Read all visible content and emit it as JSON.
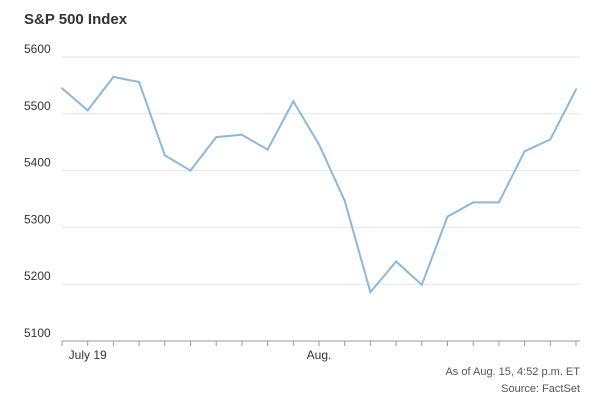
{
  "chart_data": {
    "type": "line",
    "title": "S&P 500 Index",
    "xlabel": "",
    "ylabel": "",
    "ylim": [
      5100,
      5600
    ],
    "yticks": [
      5100,
      5200,
      5300,
      5400,
      5500,
      5600
    ],
    "x_tick_labels": [
      {
        "index": 1,
        "label": "July 19"
      },
      {
        "index": 10,
        "label": "Aug."
      }
    ],
    "grid": true,
    "series": [
      {
        "values": [
          5545,
          5506,
          5565,
          5556,
          5427,
          5400,
          5459,
          5463,
          5437,
          5522,
          5446,
          5347,
          5186,
          5240,
          5199,
          5319,
          5344,
          5344,
          5434,
          5455,
          5543
        ]
      }
    ],
    "colors": {
      "line": "#8bb8de",
      "grid": "#e6e6e6",
      "axis": "#999999"
    }
  },
  "notes": {
    "as_of": "As of Aug. 15, 4:52 p.m. ET",
    "source": "Source: FactSet"
  }
}
